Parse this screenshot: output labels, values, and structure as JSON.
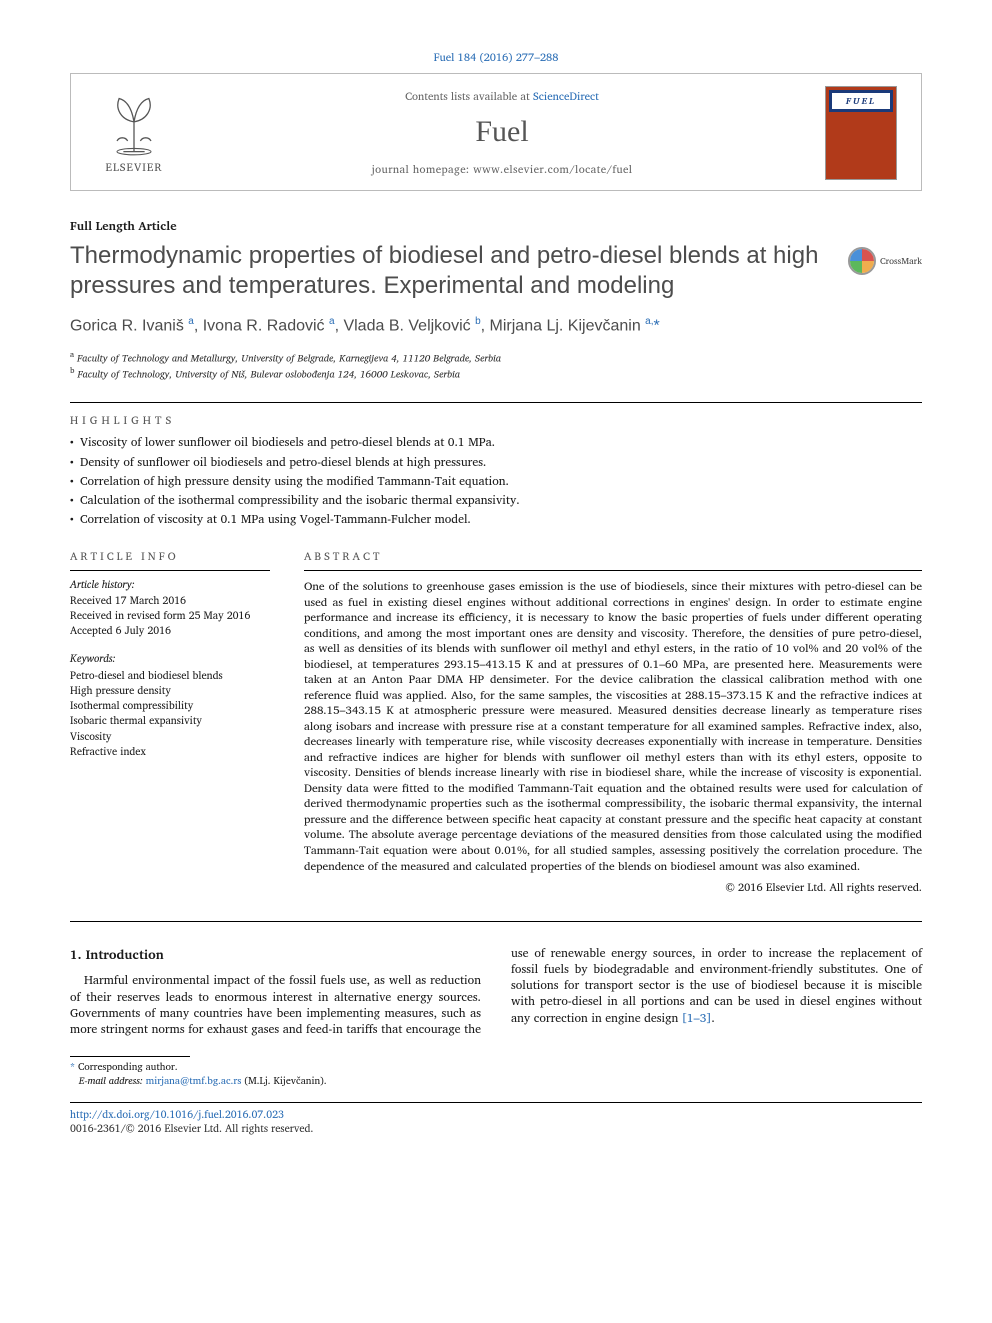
{
  "citation": "Fuel 184 (2016) 277–288",
  "header": {
    "contents_prefix": "Contents lists available at ",
    "contents_link": "ScienceDirect",
    "journal_name": "Fuel",
    "homepage_prefix": "journal homepage: ",
    "homepage_url": "www.elsevier.com/locate/fuel",
    "publisher": "ELSEVIER",
    "thumb_title": "FUEL"
  },
  "article_type": "Full Length Article",
  "title": "Thermodynamic properties of biodiesel and petro-diesel blends at high pressures and temperatures. Experimental and modeling",
  "crossmark_label": "CrossMark",
  "authors_html": "Gorica R. Ivaniš <sup>a</sup>, Ivona R. Radović <sup>a</sup>, Vlada B. Veljković <sup>b</sup>, Mirjana Lj. Kijevčanin <sup>a,</sup><span class='star'>*</span>",
  "affiliations": [
    {
      "sup": "a",
      "text": "Faculty of Technology and Metallurgy, University of Belgrade, Karnegijeva 4, 11120 Belgrade, Serbia"
    },
    {
      "sup": "b",
      "text": "Faculty of Technology, University of Niš, Bulevar oslobođenja 124, 16000 Leskovac, Serbia"
    }
  ],
  "section_labels": {
    "highlights": "highlights",
    "article_info": "article info",
    "abstract": "abstract"
  },
  "highlights": [
    "Viscosity of lower sunflower oil biodiesels and petro-diesel blends at 0.1 MPa.",
    "Density of sunflower oil biodiesels and petro-diesel blends at high pressures.",
    "Correlation of high pressure density using the modified Tammann-Tait equation.",
    "Calculation of the isothermal compressibility and the isobaric thermal expansivity.",
    "Correlation of viscosity at 0.1 MPa using Vogel-Tammann-Fulcher model."
  ],
  "history": {
    "label": "Article history:",
    "items": [
      "Received 17 March 2016",
      "Received in revised form 25 May 2016",
      "Accepted 6 July 2016"
    ]
  },
  "keywords": {
    "label": "Keywords:",
    "items": [
      "Petro-diesel and biodiesel blends",
      "High pressure density",
      "Isothermal compressibility",
      "Isobaric thermal expansivity",
      "Viscosity",
      "Refractive index"
    ]
  },
  "abstract": "One of the solutions to greenhouse gases emission is the use of biodiesels, since their mixtures with petro-diesel can be used as fuel in existing diesel engines without additional corrections in engines' design. In order to estimate engine performance and increase its efficiency, it is necessary to know the basic properties of fuels under different operating conditions, and among the most important ones are density and viscosity. Therefore, the densities of pure petro-diesel, as well as densities of its blends with sunflower oil methyl and ethyl esters, in the ratio of 10 vol% and 20 vol% of the biodiesel, at temperatures 293.15–413.15 K and at pressures of 0.1–60 MPa, are presented here. Measurements were taken at an Anton Paar DMA HP densimeter. For the device calibration the classical calibration method with one reference fluid was applied. Also, for the same samples, the viscosities at 288.15–373.15 K and the refractive indices at 288.15–343.15 K at atmospheric pressure were measured. Measured densities decrease linearly as temperature rises along isobars and increase with pressure rise at a constant temperature for all examined samples. Refractive index, also, decreases linearly with temperature rise, while viscosity decreases exponentially with increase in temperature. Densities and refractive indices are higher for blends with sunflower oil methyl esters than with its ethyl esters, opposite to viscosity. Densities of blends increase linearly with rise in biodiesel share, while the increase of viscosity is exponential. Density data were fitted to the modified Tammann-Tait equation and the obtained results were used for calculation of derived thermodynamic properties such as the isothermal compressibility, the isobaric thermal expansivity, the internal pressure and the difference between specific heat capacity at constant pressure and the specific heat capacity at constant volume. The absolute average percentage deviations of the measured densities from those calculated using the modified Tammann-Tait equation were about 0.01%, for all studied samples, assessing positively the correlation procedure. The dependence of the measured and calculated properties of the blends on biodiesel amount was also examined.",
  "copyright": "© 2016 Elsevier Ltd. All rights reserved.",
  "intro": {
    "heading": "1. Introduction",
    "p1": "Harmful environmental impact of the fossil fuels use, as well as reduction of their reserves leads to enormous interest in alternative energy sources. Governments of many countries have been",
    "p2a": "implementing measures, such as more stringent norms for exhaust gases and feed-in tariffs that encourage the use of renewable energy sources, in order to increase the replacement of fossil fuels by biodegradable and environment-friendly substitutes. One of solutions for transport sector is the use of biodiesel because it is miscible with petro-diesel in all portions and can be used in diesel engines without any correction in engine design ",
    "ref": "[1–3]",
    "p2b": "."
  },
  "footnotes": {
    "corr": "Corresponding author.",
    "email_label": "E-mail address:",
    "email": "mirjana@tmf.bg.ac.rs",
    "email_name": "(M.Lj. Kijevčanin)."
  },
  "doi": "http://dx.doi.org/10.1016/j.fuel.2016.07.023",
  "issn": "0016-2361/© 2016 Elsevier Ltd. All rights reserved."
}
